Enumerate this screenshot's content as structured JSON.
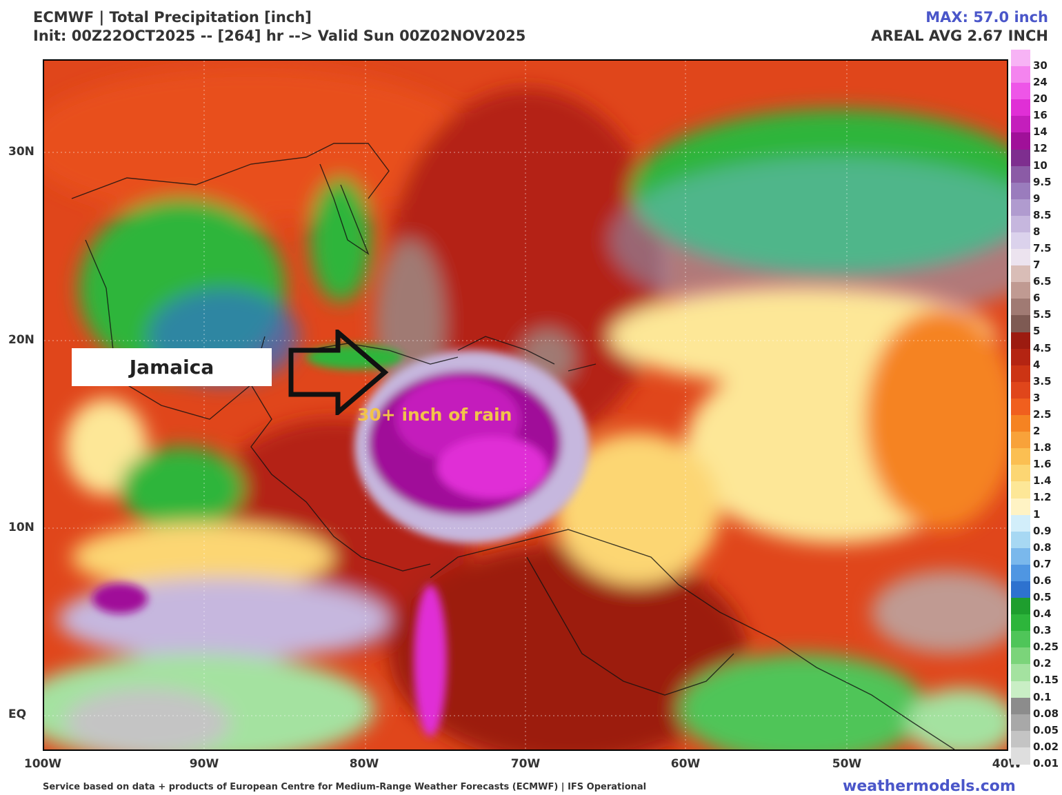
{
  "header": {
    "title": "ECMWF | Total Precipitation [inch]",
    "init": "Init: 00Z22OCT2025 -- [264] hr --> Valid Sun 00Z02NOV2025",
    "max": "MAX: 57.0 inch",
    "areal_avg": "AREAL AVG 2.67 INCH"
  },
  "axes": {
    "lat_labels": [
      "30N",
      "20N",
      "10N",
      "EQ"
    ],
    "lon_labels": [
      "100W",
      "90W",
      "80W",
      "70W",
      "60W",
      "50W",
      "40W"
    ]
  },
  "colorbar": {
    "labels": [
      "30",
      "24",
      "20",
      "16",
      "14",
      "12",
      "10",
      "9.5",
      "9",
      "8.5",
      "8",
      "7.5",
      "7",
      "6.5",
      "6",
      "5.5",
      "5",
      "4.5",
      "4",
      "3.5",
      "3",
      "2.5",
      "2",
      "1.8",
      "1.6",
      "1.4",
      "1.2",
      "1",
      "0.9",
      "0.8",
      "0.7",
      "0.6",
      "0.5",
      "0.4",
      "0.3",
      "0.25",
      "0.2",
      "0.15",
      "0.1",
      "0.08",
      "0.05",
      "0.02",
      "0.01"
    ],
    "colors": [
      "#f7b3f5",
      "#f484ef",
      "#ee55e8",
      "#e02fd6",
      "#c41ebc",
      "#a01099",
      "#7e2e8f",
      "#8b5ba6",
      "#9a7cbd",
      "#b09bcf",
      "#c6b7de",
      "#dbd2ec",
      "#ece3ef",
      "#d9bdb7",
      "#c09a92",
      "#a07a73",
      "#7e5a53",
      "#9c1b10",
      "#b42412",
      "#cc3414",
      "#e0461b",
      "#f05f1e",
      "#f58322",
      "#f8a23a",
      "#fbbf52",
      "#fcd673",
      "#fde797",
      "#fff3c4",
      "#d2eefa",
      "#a7d8f3",
      "#7ab8ec",
      "#4f96e2",
      "#2e72cf",
      "#1e9e2e",
      "#2db53b",
      "#4fc559",
      "#7bd47a",
      "#a4e2a0",
      "#c9eec5",
      "#8c8c8c",
      "#a8a8a8",
      "#c4c4c4",
      "#dedede"
    ]
  },
  "annotations": {
    "jamaica": "Jamaica",
    "rain": "30+ inch of rain"
  },
  "footer": {
    "credit": "Service based on data + products of European Centre for Medium-Range Weather Forecasts (ECMWF) | IFS Operational",
    "site": "weathermodels.com"
  }
}
